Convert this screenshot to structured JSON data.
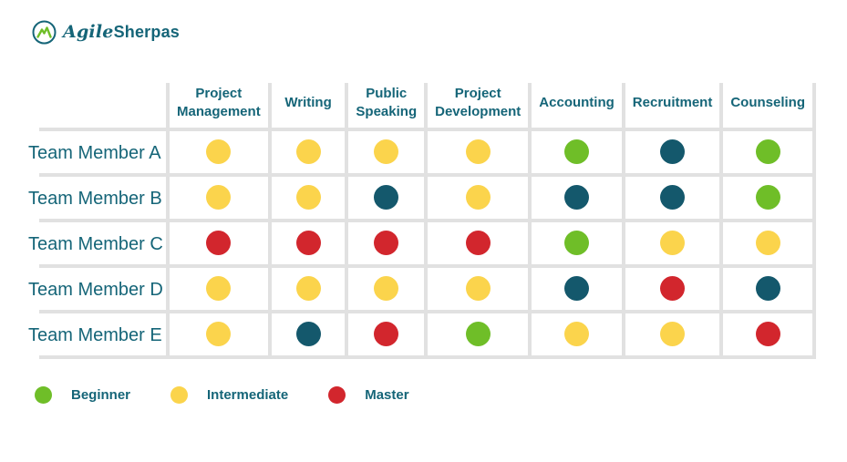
{
  "logo": {
    "brand_italic": "Agile",
    "brand_bold": "Sherpas"
  },
  "palette": {
    "green": "#6FBE28",
    "yellow": "#FBD44C",
    "red": "#D2262D",
    "teal": "#14586C",
    "text_teal": "#156578",
    "grid_gray": "#E1E1E1"
  },
  "chart_data": {
    "type": "table",
    "title": "",
    "columns": [
      "Project Management",
      "Writing",
      "Public Speaking",
      "Project Development",
      "Accounting",
      "Recruitment",
      "Counseling"
    ],
    "rows": [
      {
        "name": "Team Member A",
        "skills": [
          "yellow",
          "yellow",
          "yellow",
          "yellow",
          "green",
          "teal",
          "green"
        ]
      },
      {
        "name": "Team Member B",
        "skills": [
          "yellow",
          "yellow",
          "teal",
          "yellow",
          "teal",
          "teal",
          "green"
        ]
      },
      {
        "name": "Team Member C",
        "skills": [
          "red",
          "red",
          "red",
          "red",
          "green",
          "yellow",
          "yellow"
        ]
      },
      {
        "name": "Team Member D",
        "skills": [
          "yellow",
          "yellow",
          "yellow",
          "yellow",
          "teal",
          "red",
          "teal"
        ]
      },
      {
        "name": "Team Member E",
        "skills": [
          "yellow",
          "teal",
          "red",
          "green",
          "yellow",
          "yellow",
          "red"
        ]
      }
    ],
    "legend": [
      {
        "label": "Beginner",
        "color": "green"
      },
      {
        "label": "Intermediate",
        "color": "yellow"
      },
      {
        "label": "Master",
        "color": "red"
      }
    ]
  }
}
